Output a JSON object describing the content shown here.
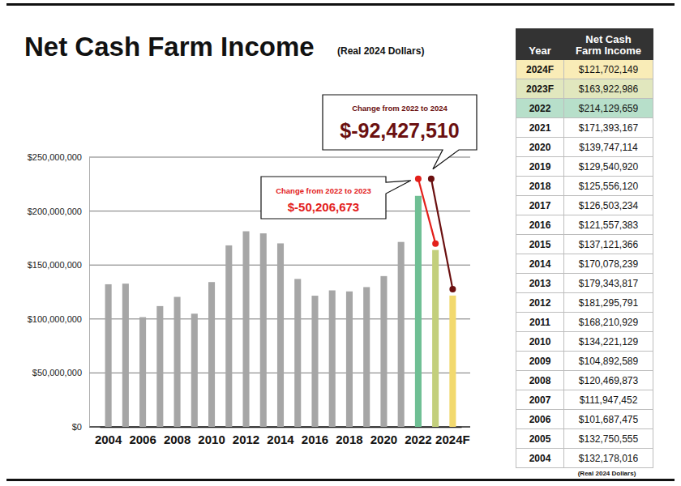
{
  "chart_data": {
    "type": "bar",
    "title": "Net Cash Farm Income",
    "subtitle": "(Real 2024 Dollars)",
    "categories": [
      "2004",
      null,
      "2006",
      null,
      "2008",
      null,
      "2010",
      null,
      "2012",
      null,
      "2014",
      null,
      "2016",
      null,
      "2018",
      null,
      "2020",
      null,
      "2022",
      null,
      "2024F"
    ],
    "values": [
      132178016,
      132750555,
      101687475,
      111947452,
      120469873,
      104892589,
      134221129,
      168210929,
      181295791,
      179343817,
      170078239,
      137121366,
      121557383,
      126503234,
      125556120,
      129540920,
      139747114,
      171393167,
      214129659,
      163922986,
      121702149
    ],
    "colors": [
      "#a6a6a6",
      "#a6a6a6",
      "#a6a6a6",
      "#a6a6a6",
      "#a6a6a6",
      "#a6a6a6",
      "#a6a6a6",
      "#a6a6a6",
      "#a6a6a6",
      "#a6a6a6",
      "#a6a6a6",
      "#a6a6a6",
      "#a6a6a6",
      "#a6a6a6",
      "#a6a6a6",
      "#a6a6a6",
      "#a6a6a6",
      "#a6a6a6",
      "#6fbf94",
      "#c3cf7c",
      "#f2d96e"
    ],
    "ylim": [
      0,
      250000000
    ],
    "yticks": [
      {
        "value": 0,
        "label": "$0"
      },
      {
        "value": 50000000,
        "label": "$50,000,000"
      },
      {
        "value": 100000000,
        "label": "$100,000,000"
      },
      {
        "value": 150000000,
        "label": "$150,000,000"
      },
      {
        "value": 200000000,
        "label": "$200,000,000"
      },
      {
        "value": 250000000,
        "label": "$250,000,000"
      }
    ],
    "grid": true,
    "annotations": [
      {
        "text": "Change from 2022 to 2023",
        "value": -50206673,
        "label": "$-50,206,673"
      },
      {
        "text": "Change from 2022 to 2024",
        "value": -92427510,
        "label": "$-92,427,510"
      }
    ]
  },
  "table": {
    "header": [
      "Year",
      "Net Cash Farm Income"
    ],
    "rows": [
      [
        "2024F",
        "$121,702,149"
      ],
      [
        "2023F",
        "$163,922,986"
      ],
      [
        "2022",
        "$214,129,659"
      ],
      [
        "2021",
        "$171,393,167"
      ],
      [
        "2020",
        "$139,747,114"
      ],
      [
        "2019",
        "$129,540,920"
      ],
      [
        "2018",
        "$125,556,120"
      ],
      [
        "2017",
        "$126,503,234"
      ],
      [
        "2016",
        "$121,557,383"
      ],
      [
        "2015",
        "$137,121,366"
      ],
      [
        "2014",
        "$170,078,239"
      ],
      [
        "2013",
        "$179,343,817"
      ],
      [
        "2012",
        "$181,295,791"
      ],
      [
        "2011",
        "$168,210,929"
      ],
      [
        "2010",
        "$134,221,129"
      ],
      [
        "2009",
        "$104,892,589"
      ],
      [
        "2008",
        "$120,469,873"
      ],
      [
        "2007",
        "$111,947,452"
      ],
      [
        "2006",
        "$101,687,475"
      ],
      [
        "2005",
        "$132,750,555"
      ],
      [
        "2004",
        "$132,178,016"
      ]
    ],
    "note": "(Real 2024 Dollars)"
  }
}
